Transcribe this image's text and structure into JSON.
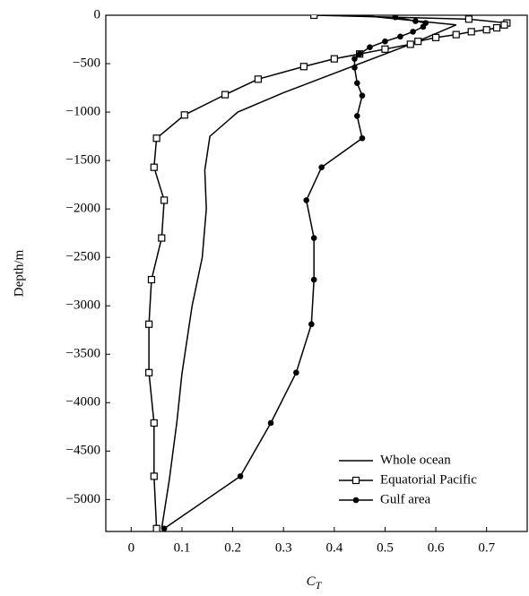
{
  "chart_data": {
    "type": "line",
    "ylabel": "Depth/m",
    "xlabel": "C",
    "xlabel_subscript": "T",
    "xlim": [
      -0.05,
      0.78
    ],
    "ylim": [
      -5330,
      0
    ],
    "xticks": [
      0,
      0.1,
      0.2,
      0.3,
      0.4,
      0.5,
      0.6,
      0.7
    ],
    "yticks": [
      0,
      {
        "value": -500,
        "label": "−500"
      },
      {
        "value": -1000,
        "label": "−1000"
      },
      {
        "value": -1500,
        "label": "−1500"
      },
      {
        "value": -2000,
        "label": "−2000"
      },
      {
        "value": -2500,
        "label": "−2500"
      },
      {
        "value": -3000,
        "label": "−3000"
      },
      {
        "value": -3500,
        "label": "−3500"
      },
      {
        "value": -4000,
        "label": "−4000"
      },
      {
        "value": -4500,
        "label": "−4500"
      },
      {
        "value": -5000,
        "label": "−5000"
      }
    ],
    "legend": "lower right",
    "series": [
      {
        "name": "Whole ocean",
        "color": "#000000",
        "marker": "none",
        "x": [
          0.45,
          0.64,
          0.55,
          0.4,
          0.3,
          0.21,
          0.155,
          0.145,
          0.148,
          0.14,
          0.12,
          0.1,
          0.09,
          0.075,
          0.06
        ],
        "y": [
          0,
          -100,
          -300,
          -600,
          -800,
          -1000,
          -1250,
          -1600,
          -2000,
          -2500,
          -3000,
          -3700,
          -4200,
          -4800,
          -5300
        ]
      },
      {
        "name": "Equatorial Pacific",
        "color": "#000000",
        "marker": "square",
        "x": [
          0.36,
          0.665,
          0.74,
          0.735,
          0.72,
          0.7,
          0.67,
          0.64,
          0.6,
          0.565,
          0.55,
          0.5,
          0.45,
          0.4,
          0.34,
          0.25,
          0.185,
          0.105,
          0.05,
          0.045,
          0.065,
          0.06,
          0.04,
          0.035,
          0.035,
          0.045,
          0.045,
          0.05
        ],
        "y": [
          0,
          -40,
          -80,
          -100,
          -130,
          -150,
          -170,
          -200,
          -230,
          -270,
          -300,
          -350,
          -400,
          -450,
          -530,
          -660,
          -820,
          -1030,
          -1270,
          -1570,
          -1910,
          -2300,
          -2730,
          -3190,
          -3690,
          -4210,
          -4760,
          -5300
        ]
      },
      {
        "name": "Gulf area",
        "color": "#000000",
        "marker": "circle",
        "x": [
          0.52,
          0.56,
          0.58,
          0.575,
          0.555,
          0.53,
          0.5,
          0.47,
          0.45,
          0.44,
          0.44,
          0.445,
          0.455,
          0.445,
          0.455,
          0.375,
          0.345,
          0.36,
          0.36,
          0.355,
          0.325,
          0.275,
          0.215,
          0.065
        ],
        "y": [
          -20,
          -60,
          -80,
          -120,
          -170,
          -220,
          -270,
          -330,
          -400,
          -450,
          -540,
          -700,
          -830,
          -1040,
          -1270,
          -1570,
          -1910,
          -2300,
          -2730,
          -3190,
          -3690,
          -4210,
          -4760,
          -5300
        ]
      }
    ]
  }
}
